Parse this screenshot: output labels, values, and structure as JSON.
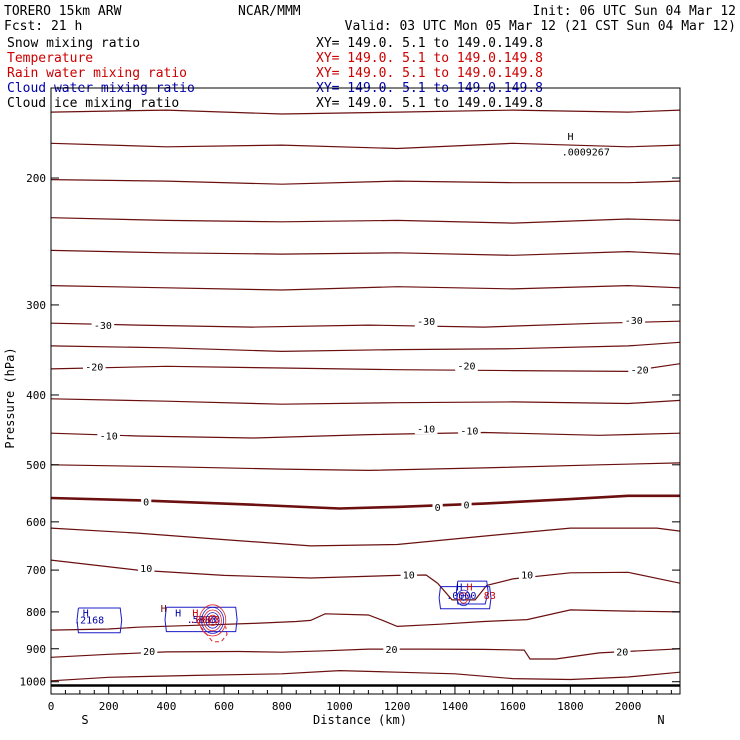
{
  "header": {
    "model": "TORERO  15km ARW",
    "center": "NCAR/MMM",
    "init": "Init: 06 UTC Sun 04 Mar 12",
    "fcst": "Fcst:    21 h",
    "valid": "Valid: 03 UTC Mon 05 Mar 12 (21 CST Sun 04 Mar 12)"
  },
  "fields": [
    {
      "label": "Snow mixing ratio",
      "xy": "XY= 149.0.  5.1 to 149.0.149.8",
      "color": "#000000"
    },
    {
      "label": "Temperature",
      "xy": "XY= 149.0.  5.1 to 149.0.149.8",
      "color": "#cc0000"
    },
    {
      "label": "Rain water mixing ratio",
      "xy": "XY= 149.0.  5.1 to 149.0.149.8",
      "color": "#cc0000"
    },
    {
      "label": "Cloud water mixing ratio",
      "xy": "XY= 149.0.  5.1 to 149.0.149.8",
      "color": "#0000aa"
    },
    {
      "label": "Cloud ice mixing ratio",
      "xy": "XY= 149.0.  5.1 to 149.0.149.8",
      "color": "#000000"
    }
  ],
  "colors": {
    "temperature": "#6b0f0f",
    "cloud_water": "#1c1cc8",
    "rain_water": "#dd2222",
    "cloud_ice": "#000000"
  },
  "chart_data": {
    "type": "contour",
    "xlabel": "Distance (km)",
    "ylabel": "Pressure (hPa)",
    "x_range": [
      0,
      2180
    ],
    "y_range": [
      150,
      1040
    ],
    "y_scale": "log",
    "x_ticks": [
      0,
      200,
      400,
      600,
      800,
      1000,
      1200,
      1400,
      1600,
      1800,
      2000
    ],
    "y_ticks": [
      200,
      300,
      400,
      500,
      600,
      700,
      800,
      900,
      1000
    ],
    "end_labels": {
      "left": "S",
      "right": "N"
    },
    "ground_pressure": 1012,
    "temperature_levels": [
      -60,
      -55,
      -50,
      -45,
      -40,
      -35,
      -30,
      -25,
      -20,
      -15,
      -10,
      -5,
      0,
      5,
      10,
      15,
      20,
      25
    ],
    "temperature_isotherms": [
      {
        "level": -60,
        "points": [
          [
            0,
            162
          ],
          [
            400,
            161
          ],
          [
            800,
            163
          ],
          [
            1200,
            162
          ],
          [
            1600,
            161
          ],
          [
            2000,
            162
          ],
          [
            2180,
            161
          ]
        ]
      },
      {
        "level": -55,
        "points": [
          [
            0,
            179
          ],
          [
            400,
            181
          ],
          [
            800,
            180
          ],
          [
            1200,
            182
          ],
          [
            1600,
            179
          ],
          [
            2000,
            181
          ],
          [
            2180,
            180
          ]
        ]
      },
      {
        "level": -50,
        "points": [
          [
            0,
            201
          ],
          [
            400,
            202
          ],
          [
            800,
            204
          ],
          [
            1200,
            202
          ],
          [
            1600,
            203
          ],
          [
            2000,
            203
          ],
          [
            2180,
            202
          ]
        ]
      },
      {
        "level": -45,
        "points": [
          [
            0,
            227
          ],
          [
            400,
            229
          ],
          [
            800,
            230
          ],
          [
            1200,
            229
          ],
          [
            1600,
            231
          ],
          [
            2000,
            228
          ],
          [
            2180,
            229
          ]
        ]
      },
      {
        "level": -40,
        "points": [
          [
            0,
            252
          ],
          [
            400,
            254
          ],
          [
            800,
            255
          ],
          [
            1200,
            254
          ],
          [
            1600,
            256
          ],
          [
            2000,
            253
          ],
          [
            2180,
            255
          ]
        ]
      },
      {
        "level": -35,
        "points": [
          [
            0,
            282
          ],
          [
            400,
            284
          ],
          [
            800,
            286
          ],
          [
            1200,
            283
          ],
          [
            1600,
            285
          ],
          [
            2000,
            282
          ],
          [
            2180,
            284
          ]
        ]
      },
      {
        "level": -30,
        "points": [
          [
            0,
            318
          ],
          [
            300,
            320
          ],
          [
            700,
            322
          ],
          [
            1100,
            320
          ],
          [
            1500,
            322
          ],
          [
            1900,
            318
          ],
          [
            2180,
            316
          ]
        ]
      },
      {
        "level": -25,
        "points": [
          [
            0,
            342
          ],
          [
            400,
            344
          ],
          [
            800,
            348
          ],
          [
            1200,
            346
          ],
          [
            1600,
            345
          ],
          [
            2000,
            342
          ],
          [
            2180,
            338
          ]
        ]
      },
      {
        "level": -20,
        "points": [
          [
            0,
            368
          ],
          [
            400,
            365
          ],
          [
            800,
            367
          ],
          [
            1200,
            369
          ],
          [
            1600,
            370
          ],
          [
            2000,
            371
          ],
          [
            2180,
            362
          ]
        ]
      },
      {
        "level": -15,
        "points": [
          [
            0,
            405
          ],
          [
            400,
            408
          ],
          [
            800,
            412
          ],
          [
            1200,
            410
          ],
          [
            1600,
            409
          ],
          [
            2000,
            411
          ],
          [
            2180,
            407
          ]
        ]
      },
      {
        "level": -10,
        "points": [
          [
            0,
            452
          ],
          [
            300,
            456
          ],
          [
            700,
            459
          ],
          [
            1100,
            454
          ],
          [
            1500,
            451
          ],
          [
            1900,
            455
          ],
          [
            2180,
            452
          ]
        ]
      },
      {
        "level": -5,
        "points": [
          [
            0,
            500
          ],
          [
            400,
            503
          ],
          [
            800,
            507
          ],
          [
            1100,
            509
          ],
          [
            1500,
            505
          ],
          [
            1900,
            500
          ],
          [
            2180,
            497
          ]
        ]
      },
      {
        "level": 0,
        "points": [
          [
            0,
            556
          ],
          [
            300,
            560
          ],
          [
            700,
            568
          ],
          [
            1000,
            575
          ],
          [
            1200,
            572
          ],
          [
            1500,
            566
          ],
          [
            1800,
            558
          ],
          [
            2000,
            552
          ],
          [
            2180,
            552
          ]
        ]
      },
      {
        "level": 5,
        "points": [
          [
            0,
            612
          ],
          [
            300,
            622
          ],
          [
            600,
            635
          ],
          [
            900,
            648
          ],
          [
            1200,
            645
          ],
          [
            1500,
            628
          ],
          [
            1800,
            612
          ],
          [
            2100,
            612
          ],
          [
            2180,
            618
          ]
        ]
      },
      {
        "level": 10,
        "points": [
          [
            0,
            678
          ],
          [
            300,
            700
          ],
          [
            600,
            712
          ],
          [
            900,
            718
          ],
          [
            1200,
            712
          ],
          [
            1300,
            711
          ],
          [
            1340,
            730
          ],
          [
            1390,
            770
          ],
          [
            1470,
            770
          ],
          [
            1510,
            735
          ],
          [
            1600,
            720
          ],
          [
            1800,
            706
          ],
          [
            2000,
            705
          ],
          [
            2180,
            730
          ]
        ]
      },
      {
        "level": 15,
        "points": [
          [
            0,
            848
          ],
          [
            200,
            845
          ],
          [
            300,
            840
          ],
          [
            500,
            835
          ],
          [
            700,
            830
          ],
          [
            850,
            825
          ],
          [
            900,
            822
          ],
          [
            950,
            805
          ],
          [
            1100,
            808
          ],
          [
            1150,
            822
          ],
          [
            1200,
            838
          ],
          [
            1350,
            832
          ],
          [
            1500,
            825
          ],
          [
            1650,
            820
          ],
          [
            1800,
            795
          ],
          [
            2000,
            798
          ],
          [
            2180,
            800
          ]
        ]
      },
      {
        "level": 20,
        "points": [
          [
            0,
            925
          ],
          [
            200,
            916
          ],
          [
            400,
            909
          ],
          [
            650,
            908
          ],
          [
            800,
            910
          ],
          [
            950,
            906
          ],
          [
            1100,
            901
          ],
          [
            1300,
            901
          ],
          [
            1500,
            902
          ],
          [
            1640,
            904
          ],
          [
            1660,
            930
          ],
          [
            1750,
            930
          ],
          [
            1900,
            912
          ],
          [
            2180,
            900
          ]
        ]
      },
      {
        "level": 25,
        "points": [
          [
            0,
            997
          ],
          [
            200,
            986
          ],
          [
            500,
            980
          ],
          [
            800,
            975
          ],
          [
            1000,
            965
          ],
          [
            1200,
            970
          ],
          [
            1400,
            975
          ],
          [
            1600,
            990
          ],
          [
            1800,
            993
          ],
          [
            2000,
            985
          ],
          [
            2180,
            970
          ]
        ]
      }
    ],
    "temperature_labels": [
      {
        "text": "-30",
        "x": 180,
        "p": 320
      },
      {
        "text": "-30",
        "x": 1300,
        "p": 316
      },
      {
        "text": "-30",
        "x": 2020,
        "p": 315
      },
      {
        "text": "-20",
        "x": 150,
        "p": 365
      },
      {
        "text": "-20",
        "x": 1440,
        "p": 364
      },
      {
        "text": "-20",
        "x": 2040,
        "p": 369
      },
      {
        "text": "-10",
        "x": 200,
        "p": 455
      },
      {
        "text": "-10",
        "x": 1300,
        "p": 445
      },
      {
        "text": "-10",
        "x": 1450,
        "p": 448
      },
      {
        "text": "0",
        "x": 330,
        "p": 562
      },
      {
        "text": "0",
        "x": 1340,
        "p": 572
      },
      {
        "text": "0",
        "x": 1440,
        "p": 568
      },
      {
        "text": "10",
        "x": 330,
        "p": 695
      },
      {
        "text": "10",
        "x": 1240,
        "p": 710
      },
      {
        "text": "10",
        "x": 1650,
        "p": 710
      },
      {
        "text": "20",
        "x": 340,
        "p": 907
      },
      {
        "text": "20",
        "x": 1180,
        "p": 900
      },
      {
        "text": "20",
        "x": 1980,
        "p": 908
      }
    ],
    "cloud_water": [
      {
        "points": [
          [
            95,
            790
          ],
          [
            240,
            790
          ],
          [
            245,
            822
          ],
          [
            240,
            855
          ],
          [
            95,
            855
          ],
          [
            90,
            822
          ],
          [
            95,
            790
          ]
        ]
      },
      {
        "points": [
          [
            400,
            788
          ],
          [
            640,
            788
          ],
          [
            645,
            820
          ],
          [
            640,
            852
          ],
          [
            400,
            852
          ],
          [
            395,
            820
          ],
          [
            400,
            788
          ]
        ]
      },
      {
        "points": [
          [
            1350,
            738
          ],
          [
            1520,
            738
          ],
          [
            1525,
            765
          ],
          [
            1520,
            792
          ],
          [
            1350,
            792
          ],
          [
            1345,
            765
          ],
          [
            1350,
            738
          ]
        ]
      },
      {
        "points": [
          [
            1410,
            725
          ],
          [
            1510,
            725
          ],
          [
            1515,
            750
          ],
          [
            1505,
            780
          ],
          [
            1410,
            780
          ],
          [
            1405,
            750
          ],
          [
            1410,
            725
          ]
        ]
      }
    ],
    "rain_water": [
      {
        "points": [
          [
            505,
            825
          ],
          [
            540,
            860
          ],
          [
            560,
            880
          ],
          [
            590,
            880
          ],
          [
            610,
            860
          ],
          [
            605,
            838
          ]
        ]
      }
    ],
    "cloud_ice_rings": [
      {
        "x": 560,
        "p": 822,
        "n": 6
      },
      {
        "x": 1430,
        "p": 765,
        "n": 3
      }
    ],
    "annotations": [
      {
        "text": "H",
        "x": 1790,
        "p": 177,
        "color": "#000000"
      },
      {
        "text": ".0009267",
        "x": 1770,
        "p": 186,
        "color": "#000000"
      },
      {
        "text": "H",
        "x": 110,
        "p": 812,
        "color": "#0000aa"
      },
      {
        "text": ".2168",
        "x": 80,
        "p": 830,
        "color": "#0000aa"
      },
      {
        "text": "H",
        "x": 430,
        "p": 812,
        "color": "#0000aa"
      },
      {
        "text": ".5883",
        "x": 470,
        "p": 829,
        "color": "#0000aa"
      },
      {
        "text": "H",
        "x": 490,
        "p": 812,
        "color": "#cc0000"
      },
      {
        "text": ".0083",
        "x": 480,
        "p": 829,
        "color": "#cc0000"
      },
      {
        "text": "H",
        "x": 1405,
        "p": 747,
        "color": "#0000aa"
      },
      {
        "text": "H",
        "x": 1440,
        "p": 747,
        "color": "#cc0000"
      },
      {
        "text": ".0000",
        "x": 1370,
        "p": 768,
        "color": "#0000aa"
      },
      {
        "text": "83",
        "x": 1500,
        "p": 768,
        "color": "#cc0000"
      },
      {
        "text": "H",
        "x": 380,
        "p": 800,
        "color": "#6b0f0f"
      }
    ]
  }
}
